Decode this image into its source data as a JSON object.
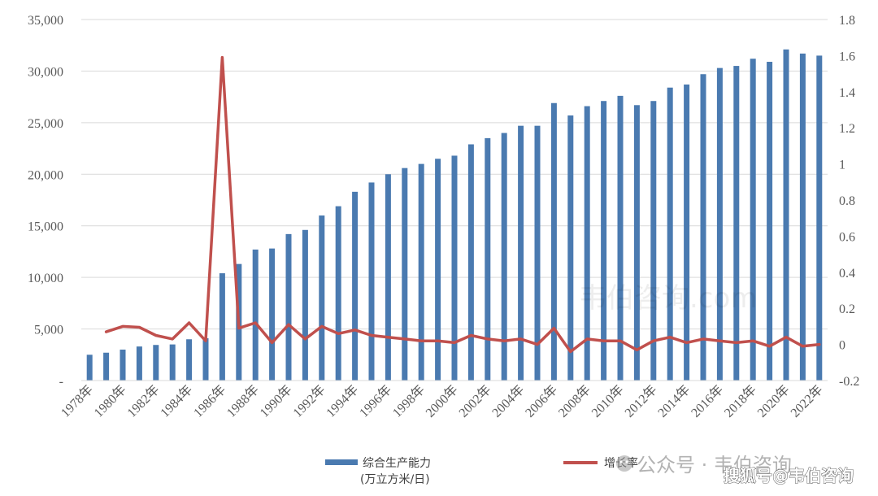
{
  "chart_data": {
    "type": "bar",
    "categories": [
      "1978年",
      "1979年",
      "1980年",
      "1981年",
      "1982年",
      "1983年",
      "1984年",
      "1985年",
      "1986年",
      "1987年",
      "1988年",
      "1989年",
      "1990年",
      "1991年",
      "1992年",
      "1993年",
      "1994年",
      "1995年",
      "1996年",
      "1997年",
      "1998年",
      "1999年",
      "2000年",
      "2001年",
      "2002年",
      "2003年",
      "2004年",
      "2005年",
      "2006年",
      "2007年",
      "2008年",
      "2009年",
      "2010年",
      "2011年",
      "2012年",
      "2013年",
      "2014年",
      "2015年",
      "2016年",
      "2017年",
      "2018年",
      "2019年",
      "2020年",
      "2021年",
      "2022年"
    ],
    "x_tick_labels": [
      "1978年",
      "1980年",
      "1982年",
      "1984年",
      "1986年",
      "1988年",
      "1990年",
      "1992年",
      "1994年",
      "1996年",
      "1998年",
      "2000年",
      "2002年",
      "2004年",
      "2006年",
      "2008年",
      "2010年",
      "2012年",
      "2014年",
      "2016年",
      "2018年",
      "2020年",
      "2022年"
    ],
    "series": [
      {
        "name": "综合生产能力",
        "name_line2": "(万立方米/日)",
        "type": "bar",
        "axis": "left",
        "color": "#4a7ab0",
        "values": [
          2500,
          2700,
          3000,
          3300,
          3450,
          3500,
          4000,
          4100,
          10400,
          11300,
          12700,
          12800,
          14200,
          14600,
          16000,
          16900,
          18300,
          19200,
          20000,
          20600,
          21000,
          21500,
          21800,
          22900,
          23500,
          24000,
          24700,
          24700,
          26900,
          25700,
          26600,
          27100,
          27600,
          26700,
          27100,
          28400,
          28700,
          29700,
          30300,
          30500,
          31200,
          30900,
          32100,
          31700,
          31500
        ]
      },
      {
        "name": "增长率",
        "type": "line",
        "axis": "right",
        "color": "#c0504d",
        "values": [
          null,
          0.07,
          0.1,
          0.095,
          0.05,
          0.03,
          0.12,
          0.02,
          1.59,
          0.09,
          0.12,
          0.01,
          0.11,
          0.03,
          0.1,
          0.06,
          0.08,
          0.05,
          0.04,
          0.03,
          0.02,
          0.02,
          0.01,
          0.05,
          0.03,
          0.02,
          0.03,
          0.0,
          0.09,
          -0.04,
          0.03,
          0.02,
          0.02,
          -0.03,
          0.02,
          0.04,
          0.01,
          0.03,
          0.02,
          0.01,
          0.02,
          -0.01,
          0.04,
          -0.01,
          0.0
        ]
      }
    ],
    "y_left": {
      "ylim": [
        0,
        35000
      ],
      "tick_labels": [
        "-",
        "5,000",
        "10,000",
        "15,000",
        "20,000",
        "25,000",
        "30,000",
        "35,000"
      ]
    },
    "y_right": {
      "ylim": [
        -0.2,
        1.8
      ],
      "tick_labels": [
        "-0.2",
        "0",
        "0.2",
        "0.4",
        "0.6",
        "0.8",
        "1",
        "1.2",
        "1.4",
        "1.6",
        "1.8"
      ]
    },
    "grid": "horizontal",
    "legend": "bottom"
  },
  "watermarks": {
    "center": "韦伯咨询.com",
    "wechat": "公众号 · 韦伯咨询",
    "sohu": "搜狐号@韦伯咨询"
  }
}
